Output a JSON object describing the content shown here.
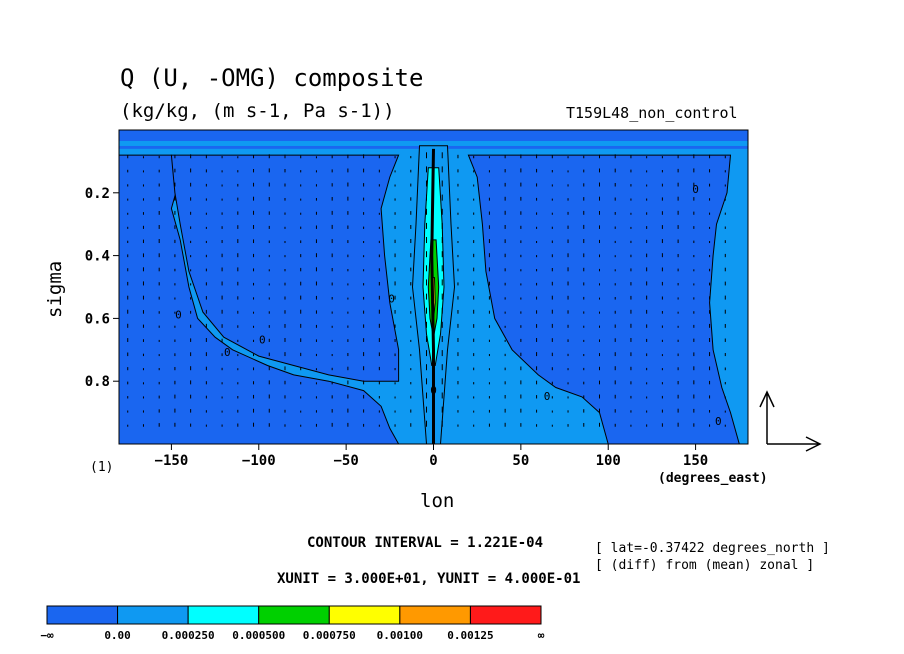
{
  "chart_data": {
    "type": "heatmap",
    "title": "Q (U, -OMG) composite",
    "units_line": "(kg/kg, (m s-1, Pa s-1))",
    "run_label": "T159L48_non_control",
    "xlabel": "lon",
    "ylabel": "sigma",
    "x_units": "(degrees_east)",
    "panel_label": "(1)",
    "xlim": [
      -180,
      180
    ],
    "ylim": [
      1.0,
      0.0
    ],
    "x_ticks": [
      -150,
      -100,
      -50,
      0,
      50,
      100,
      150
    ],
    "x_tick_labels": [
      "−150",
      "−100",
      "−50",
      "0",
      "50",
      "100",
      "150"
    ],
    "y_ticks": [
      0.2,
      0.4,
      0.6,
      0.8
    ],
    "y_tick_labels": [
      "0.2",
      "0.4",
      "0.6",
      "0.8"
    ],
    "contour_interval_text": "CONTOUR INTERVAL = 1.221E-04",
    "vector_units_text": "XUNIT = 3.000E+01, YUNIT = 4.000E-01",
    "annotations": [
      "[ lat=-0.37422 degrees_north ]",
      "[ (diff) from (mean) zonal ]"
    ],
    "contour_labels": [
      "0",
      "0",
      "0",
      "0",
      "0",
      "0",
      "0",
      "0"
    ],
    "colorbar": {
      "levels": [
        "−∞",
        "0.00",
        "0.000250",
        "0.000500",
        "0.000750",
        "0.00100",
        "0.00125",
        "∞"
      ],
      "colors": [
        "#1a66f0",
        "#0f99f2",
        "#00ffff",
        "#00d000",
        "#ffff00",
        "#ff9900",
        "#ff1a1a"
      ]
    },
    "field_colors": {
      "negative": "#1a66f0",
      "small_positive": "#0f99f2",
      "level_2": "#00ffff",
      "level_3": "#00d000",
      "level_4": "#ffff00"
    }
  }
}
